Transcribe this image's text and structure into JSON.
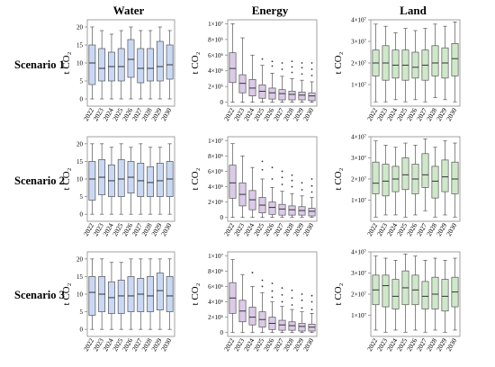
{
  "columns": [
    "Water",
    "Energy",
    "Land"
  ],
  "rows": [
    "Scenario 1",
    "Scenario 2",
    "Scenario 3"
  ],
  "ylabel": "t CO₂",
  "colors": {
    "Water": "#c9d9f5",
    "Energy": "#dccbe8",
    "Land": "#cfe8c9",
    "edge": "#555555",
    "frame": "#8a8a8a",
    "outlier": "#333333"
  },
  "chart_data": [
    {
      "id": "water-s1",
      "type": "boxplot",
      "row": "Scenario 1",
      "col": "Water",
      "ylabel": "t CO₂",
      "categories": [
        "2022",
        "2023",
        "2024",
        "2025",
        "2026",
        "2027",
        "2028",
        "2029",
        "2030"
      ],
      "ylim": [
        -2,
        22
      ],
      "yticks": [
        0,
        5,
        10,
        15,
        20
      ],
      "ytick_labels": [
        "0",
        "5",
        "10",
        "15",
        "20"
      ],
      "boxes": [
        [
          0,
          4,
          10,
          15,
          20
        ],
        [
          0,
          5,
          8.5,
          14,
          19
        ],
        [
          0,
          5,
          9,
          13,
          18
        ],
        [
          0,
          5,
          9,
          14,
          19
        ],
        [
          0,
          6,
          11,
          16.5,
          20
        ],
        [
          0,
          4.5,
          8.5,
          14,
          19
        ],
        [
          0,
          5,
          8.5,
          14,
          19
        ],
        [
          0,
          5,
          9,
          16,
          20
        ],
        [
          0,
          5.5,
          9.5,
          15,
          19
        ]
      ],
      "outliers": []
    },
    {
      "id": "energy-s1",
      "type": "boxplot",
      "row": "Scenario 1",
      "col": "Energy",
      "ylabel": "t CO₂",
      "categories": [
        "2022",
        "2023",
        "2024",
        "2025",
        "2026",
        "2027",
        "2028",
        "2029",
        "2030"
      ],
      "ylim": [
        -0.5,
        10.5
      ],
      "yticks": [
        0,
        2,
        4,
        6,
        8,
        10
      ],
      "ytick_labels": [
        "0",
        "2×10⁶",
        "4×10⁶",
        "6×10⁶",
        "8×10⁶",
        "1×10⁷"
      ],
      "boxes": [
        [
          0,
          2.5,
          4.3,
          6.3,
          10
        ],
        [
          0,
          1.2,
          2.4,
          3.5,
          8.2
        ],
        [
          0,
          0.8,
          1.8,
          2.9,
          6
        ],
        [
          0,
          0.5,
          1.4,
          2.2,
          4.7
        ],
        [
          0,
          0.4,
          1.2,
          1.8,
          3.7
        ],
        [
          0,
          0.3,
          1.1,
          1.6,
          3.3
        ],
        [
          0,
          0.3,
          1,
          1.4,
          3
        ],
        [
          0,
          0.3,
          0.9,
          1.3,
          2.8
        ],
        [
          0,
          0.2,
          0.8,
          1.2,
          2.6
        ]
      ],
      "outliers": [
        [],
        [],
        [],
        [
          5.5
        ],
        [
          4.6,
          5.2
        ],
        [
          4.2,
          5
        ],
        [
          3.8,
          4.5,
          5.2
        ],
        [
          3.6,
          4.4,
          5
        ],
        [
          3.4,
          4.2,
          5
        ]
      ]
    },
    {
      "id": "land-s1",
      "type": "boxplot",
      "row": "Scenario 1",
      "col": "Land",
      "ylabel": "t CO₂",
      "categories": [
        "2022",
        "2023",
        "2024",
        "2025",
        "2026",
        "2027",
        "2028",
        "2029",
        "2030"
      ],
      "ylim": [
        0,
        4
      ],
      "yticks": [
        1,
        2,
        3,
        4
      ],
      "ytick_labels": [
        "1×10⁷",
        "2×10⁷",
        "3×10⁷",
        "4×10⁷"
      ],
      "boxes": [
        [
          0.2,
          1.4,
          2,
          2.6,
          3.8
        ],
        [
          0.2,
          1.2,
          2,
          2.8,
          3.7
        ],
        [
          0.3,
          1.3,
          1.9,
          2.6,
          3.4
        ],
        [
          0.2,
          1.2,
          1.9,
          2.6,
          3.6
        ],
        [
          0.3,
          1.3,
          1.8,
          2.5,
          3.5
        ],
        [
          0.2,
          1.2,
          1.9,
          2.6,
          3.6
        ],
        [
          0.4,
          1.4,
          2,
          2.8,
          3.8
        ],
        [
          0.3,
          1.3,
          2,
          2.7,
          3.7
        ],
        [
          0.2,
          1.4,
          2.2,
          2.9,
          3.9
        ]
      ],
      "outliers": []
    },
    {
      "id": "water-s2",
      "type": "boxplot",
      "row": "Scenario 2",
      "col": "Water",
      "ylabel": "t CO₂",
      "categories": [
        "2022",
        "2023",
        "2024",
        "2025",
        "2026",
        "2027",
        "2028",
        "2029",
        "2030"
      ],
      "ylim": [
        -2,
        22
      ],
      "yticks": [
        0,
        5,
        10,
        15,
        20
      ],
      "ytick_labels": [
        "0",
        "5",
        "10",
        "15",
        "20"
      ],
      "boxes": [
        [
          0,
          4,
          10,
          15,
          20
        ],
        [
          0,
          5.5,
          10.5,
          15.5,
          20
        ],
        [
          0,
          5,
          9.5,
          14,
          19
        ],
        [
          0,
          5,
          10,
          15.5,
          20
        ],
        [
          0,
          6,
          10.5,
          15,
          19
        ],
        [
          0,
          5,
          9.5,
          14.5,
          20
        ],
        [
          0,
          5,
          9,
          13.5,
          19
        ],
        [
          0,
          5,
          9.5,
          14.5,
          19
        ],
        [
          0,
          5,
          10,
          15,
          20
        ]
      ],
      "outliers": []
    },
    {
      "id": "energy-s2",
      "type": "boxplot",
      "row": "Scenario 2",
      "col": "Energy",
      "ylabel": "t CO₂",
      "categories": [
        "2022",
        "2023",
        "2024",
        "2025",
        "2026",
        "2027",
        "2028",
        "2029",
        "2030"
      ],
      "ylim": [
        -0.5,
        10.5
      ],
      "yticks": [
        0,
        2,
        4,
        6,
        8,
        10
      ],
      "ytick_labels": [
        "0",
        "2×10⁶",
        "4×10⁶",
        "6×10⁶",
        "8×10⁶",
        "1×10⁷"
      ],
      "boxes": [
        [
          0,
          2.5,
          4.5,
          6.8,
          9.6
        ],
        [
          0,
          1.5,
          3,
          4.5,
          8
        ],
        [
          0,
          1,
          2.3,
          3.5,
          6.5
        ],
        [
          0,
          0.6,
          1.6,
          2.6,
          5
        ],
        [
          0,
          0.4,
          1.3,
          2,
          3.9
        ],
        [
          0,
          0.3,
          1.1,
          1.7,
          3.4
        ],
        [
          0,
          0.3,
          1,
          1.5,
          3.1
        ],
        [
          0,
          0.3,
          0.9,
          1.4,
          2.8
        ],
        [
          0,
          0.2,
          0.8,
          1.2,
          2.6
        ]
      ],
      "outliers": [
        [],
        [],
        [],
        [
          6.2,
          7.3
        ],
        [
          5,
          6.5
        ],
        [
          4.3,
          5.2,
          6
        ],
        [
          4,
          4.8,
          5.5
        ],
        [
          3.6,
          4.5
        ],
        [
          3.3,
          4.1,
          5
        ]
      ]
    },
    {
      "id": "land-s2",
      "type": "boxplot",
      "row": "Scenario 2",
      "col": "Land",
      "ylabel": "t CO₂",
      "categories": [
        "2022",
        "2023",
        "2024",
        "2025",
        "2026",
        "2027",
        "2028",
        "2029",
        "2030"
      ],
      "ylim": [
        0,
        4
      ],
      "yticks": [
        1,
        2,
        3,
        4
      ],
      "ytick_labels": [
        "1×10⁷",
        "2×10⁷",
        "3×10⁷",
        "4×10⁷"
      ],
      "boxes": [
        [
          0.2,
          1.3,
          1.8,
          2.8,
          3.8
        ],
        [
          0.3,
          1.2,
          1.9,
          2.7,
          3.6
        ],
        [
          0.3,
          1.4,
          2,
          2.6,
          3.5
        ],
        [
          0.2,
          1.5,
          2.2,
          3,
          3.7
        ],
        [
          0.3,
          1.3,
          2,
          2.7,
          3.6
        ],
        [
          0.5,
          1.6,
          2.2,
          3.2,
          3.9
        ],
        [
          0.2,
          1.1,
          1.9,
          2.6,
          3.5
        ],
        [
          0.3,
          1.4,
          2.1,
          2.9,
          3.8
        ],
        [
          0.2,
          1.3,
          2,
          2.8,
          3.7
        ]
      ],
      "outliers": []
    },
    {
      "id": "water-s3",
      "type": "boxplot",
      "row": "Scenario 3",
      "col": "Water",
      "ylabel": "t CO₂",
      "categories": [
        "2022",
        "2023",
        "2024",
        "2025",
        "2026",
        "2027",
        "2028",
        "2029",
        "2030"
      ],
      "ylim": [
        -2,
        22
      ],
      "yticks": [
        0,
        5,
        10,
        15,
        20
      ],
      "ytick_labels": [
        "0",
        "5",
        "10",
        "15",
        "20"
      ],
      "boxes": [
        [
          0,
          4,
          10.5,
          15,
          20
        ],
        [
          0,
          5,
          10,
          15,
          20
        ],
        [
          0,
          4.5,
          9,
          13.5,
          19
        ],
        [
          0,
          4.5,
          9.5,
          14,
          19
        ],
        [
          0,
          5,
          9.5,
          15,
          20
        ],
        [
          0,
          5,
          10,
          14.5,
          20
        ],
        [
          0,
          5,
          9.5,
          15,
          20
        ],
        [
          0,
          5.5,
          11,
          16,
          20
        ],
        [
          0,
          5,
          9.5,
          15,
          20
        ]
      ],
      "outliers": []
    },
    {
      "id": "energy-s3",
      "type": "boxplot",
      "row": "Scenario 3",
      "col": "Energy",
      "ylabel": "t CO₂",
      "categories": [
        "2022",
        "2023",
        "2024",
        "2025",
        "2026",
        "2027",
        "2028",
        "2029",
        "2030"
      ],
      "ylim": [
        -0.5,
        10.5
      ],
      "yticks": [
        0,
        2,
        4,
        6,
        8,
        10
      ],
      "ytick_labels": [
        "0",
        "2×10⁶",
        "4×10⁶",
        "6×10⁶",
        "8×10⁶",
        "1×10⁷"
      ],
      "boxes": [
        [
          0,
          2.5,
          4.5,
          6.5,
          9.5
        ],
        [
          0,
          1.4,
          2.8,
          4.2,
          7.5
        ],
        [
          0,
          1,
          2,
          3.3,
          6
        ],
        [
          0,
          0.7,
          1.7,
          2.7,
          5.2
        ],
        [
          0,
          0.4,
          1.2,
          2,
          4
        ],
        [
          0,
          0.3,
          1,
          1.6,
          3.4
        ],
        [
          0,
          0.3,
          0.9,
          1.4,
          3
        ],
        [
          0,
          0.2,
          0.8,
          1.2,
          2.7
        ],
        [
          0,
          0.2,
          0.7,
          1.1,
          2.5
        ]
      ],
      "outliers": [
        [],
        [],
        [
          7.8
        ],
        [
          6,
          6.8
        ],
        [
          4.6,
          5.4,
          6.4
        ],
        [
          4,
          4.9,
          5.8
        ],
        [
          3.6,
          4.5,
          5.5
        ],
        [
          3.2,
          4.2,
          5
        ],
        [
          3,
          4,
          4.8
        ]
      ]
    },
    {
      "id": "land-s3",
      "type": "boxplot",
      "row": "Scenario 3",
      "col": "Land",
      "ylabel": "t CO₂",
      "categories": [
        "2022",
        "2023",
        "2024",
        "2025",
        "2026",
        "2027",
        "2028",
        "2029",
        "2030"
      ],
      "ylim": [
        0,
        4
      ],
      "yticks": [
        1,
        2,
        3,
        4
      ],
      "ytick_labels": [
        "1×10⁷",
        "2×10⁷",
        "3×10⁷",
        "4×10⁷"
      ],
      "boxes": [
        [
          0.3,
          1.5,
          2.2,
          2.9,
          3.8
        ],
        [
          0.2,
          1.4,
          2.4,
          2.9,
          3.7
        ],
        [
          0.3,
          1.3,
          1.9,
          2.7,
          3.6
        ],
        [
          0.2,
          1.5,
          2.3,
          3.1,
          3.9
        ],
        [
          0.3,
          1.5,
          2.2,
          2.9,
          3.8
        ],
        [
          0.2,
          1.3,
          1.9,
          2.6,
          3.6
        ],
        [
          0.3,
          1.3,
          2,
          2.8,
          3.7
        ],
        [
          0.2,
          1.2,
          1.9,
          2.7,
          3.6
        ],
        [
          0.3,
          1.4,
          2.1,
          2.8,
          3.7
        ]
      ],
      "outliers": []
    }
  ]
}
